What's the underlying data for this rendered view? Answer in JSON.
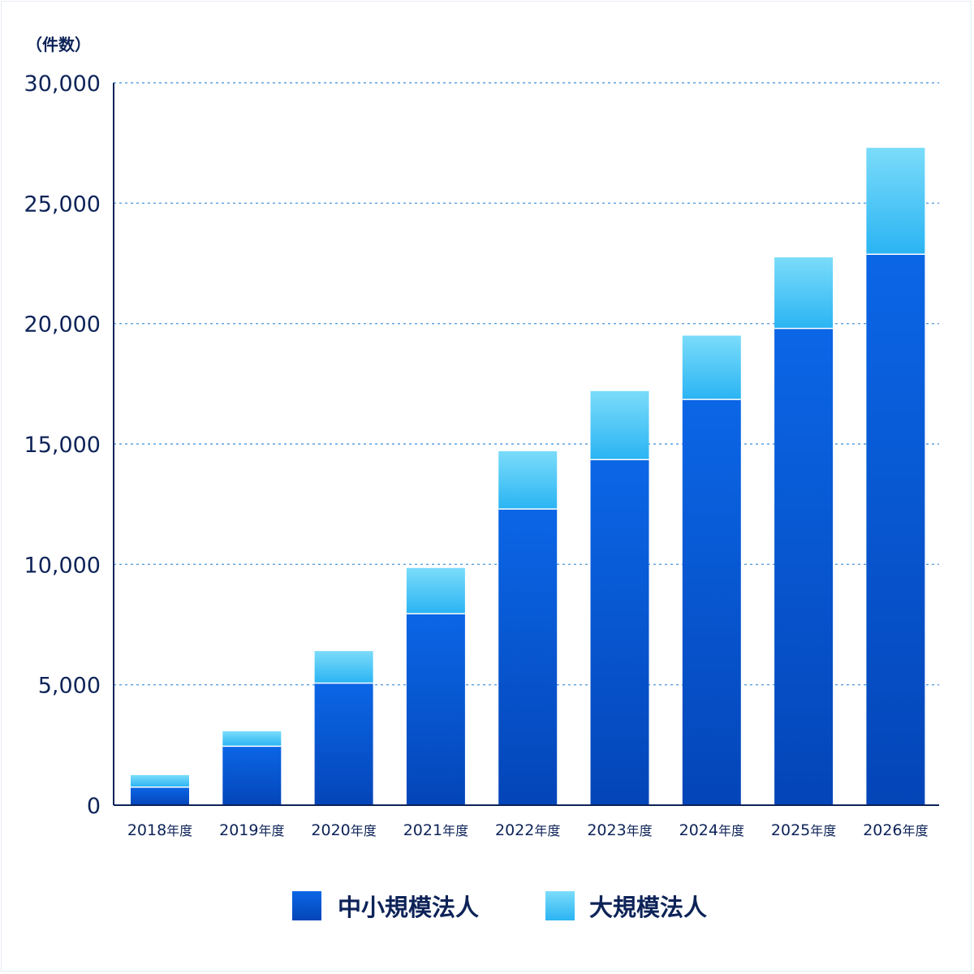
{
  "chart_data": {
    "type": "bar",
    "stacked": true,
    "unit_label": "（件数）",
    "title": "",
    "xlabel": "",
    "ylabel": "",
    "ylim": [
      0,
      30000
    ],
    "y_ticks": [
      0,
      5000,
      10000,
      15000,
      20000,
      25000,
      30000
    ],
    "y_tick_labels": [
      "0",
      "5,000",
      "10,000",
      "15,000",
      "20,000",
      "25,000",
      "30,000"
    ],
    "grid": true,
    "legend_position": "bottom",
    "categories": [
      "2018",
      "2019",
      "2020",
      "2021",
      "2022",
      "2023",
      "2024",
      "2025",
      "2026"
    ],
    "category_suffix": "年度",
    "series": [
      {
        "name": "中小規模法人",
        "color": "#0a5bd8",
        "values": [
          750,
          2450,
          5070,
          7950,
          12300,
          14350,
          16850,
          19800,
          22880
        ]
      },
      {
        "name": "大規模法人",
        "color": "#5fd2f7",
        "values": [
          500,
          620,
          1330,
          1900,
          2400,
          2850,
          2650,
          2950,
          4420
        ]
      }
    ]
  }
}
